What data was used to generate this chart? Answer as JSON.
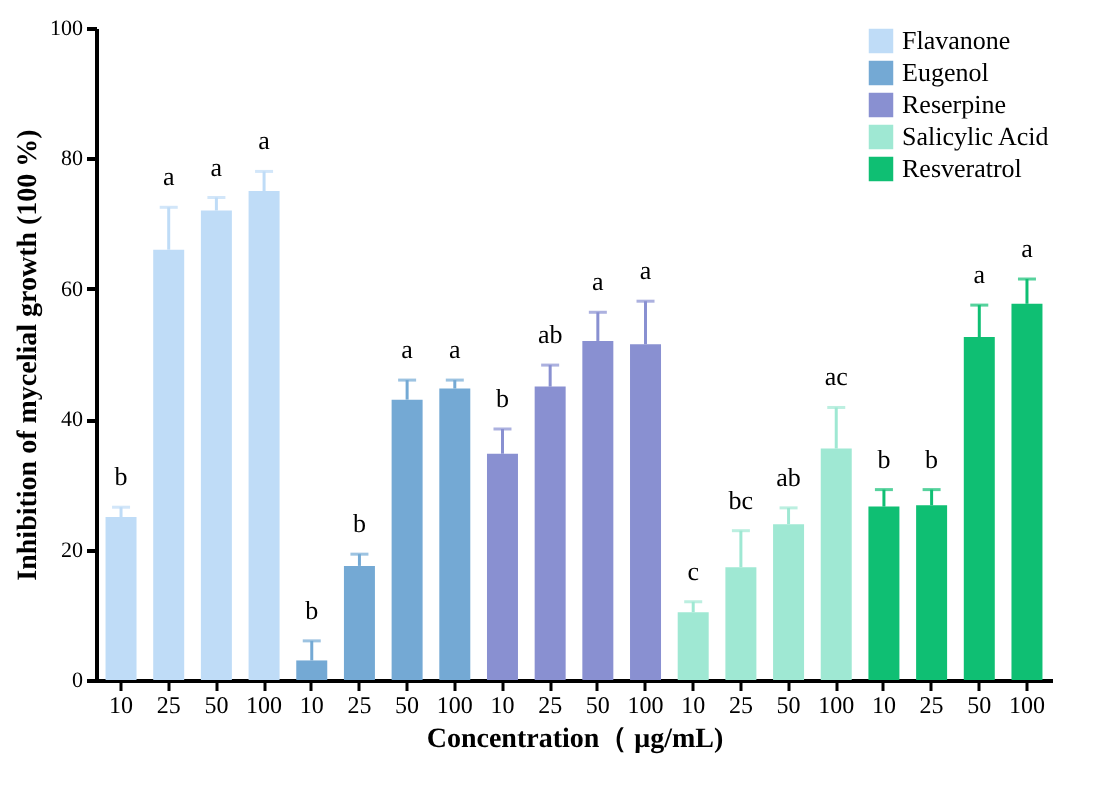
{
  "chart_data": {
    "type": "bar",
    "xlabel": "Concentration（ μg/mL)",
    "ylabel": "Inhibition of mycelial growth (100 %)",
    "categories": [
      "10",
      "25",
      "50",
      "100",
      "10",
      "25",
      "50",
      "100",
      "10",
      "25",
      "50",
      "100",
      "10",
      "25",
      "50",
      "100",
      "10",
      "25",
      "50",
      "100"
    ],
    "ylim": [
      0,
      100
    ],
    "yticks": [
      0,
      20,
      40,
      60,
      80,
      100
    ],
    "grid": false,
    "legend": "top right",
    "series": [
      {
        "name": "Flavanone",
        "color": "#bfdcf7",
        "values": [
          25,
          66,
          72,
          75,
          null,
          null,
          null,
          null,
          null,
          null,
          null,
          null,
          null,
          null,
          null,
          null,
          null,
          null,
          null,
          null
        ],
        "errors": [
          [
            25,
            26.5
          ],
          [
            66,
            72.5
          ],
          [
            72,
            74
          ],
          [
            75,
            78
          ],
          null,
          null,
          null,
          null,
          null,
          null,
          null,
          null,
          null,
          null,
          null,
          null,
          null,
          null,
          null,
          null
        ],
        "value_labels": [
          "b",
          "a",
          "a",
          "a",
          null,
          null,
          null,
          null,
          null,
          null,
          null,
          null,
          null,
          null,
          null,
          null,
          null,
          null,
          null,
          null
        ]
      },
      {
        "name": "Eugenol",
        "color": "#74a9d4",
        "values": [
          null,
          null,
          null,
          null,
          3,
          17.5,
          43,
          44.7,
          null,
          null,
          null,
          null,
          null,
          null,
          null,
          null,
          null,
          null,
          null,
          null
        ],
        "errors": [
          null,
          null,
          null,
          null,
          [
            3,
            6
          ],
          [
            17.5,
            19.3
          ],
          [
            43,
            46
          ],
          [
            44.7,
            46
          ],
          null,
          null,
          null,
          null,
          null,
          null,
          null,
          null,
          null,
          null,
          null,
          null
        ],
        "value_labels": [
          null,
          null,
          null,
          null,
          "b",
          "b",
          "a",
          "a",
          null,
          null,
          null,
          null,
          null,
          null,
          null,
          null,
          null,
          null,
          null,
          null
        ]
      },
      {
        "name": "Reserpine",
        "color": "#8990d1",
        "values": [
          null,
          null,
          null,
          null,
          null,
          null,
          null,
          null,
          34.7,
          45,
          52,
          51.5,
          null,
          null,
          null,
          null,
          null,
          null,
          null,
          null
        ],
        "errors": [
          null,
          null,
          null,
          null,
          null,
          null,
          null,
          null,
          [
            34.7,
            38.5
          ],
          [
            45,
            48.3
          ],
          [
            52,
            56.4
          ],
          [
            51.5,
            58.1
          ],
          null,
          null,
          null,
          null,
          null,
          null,
          null,
          null
        ],
        "value_labels": [
          null,
          null,
          null,
          null,
          null,
          null,
          null,
          null,
          "b",
          "ab",
          "a",
          "a",
          null,
          null,
          null,
          null,
          null,
          null,
          null,
          null
        ]
      },
      {
        "name": "Salicylic Acid",
        "color": "#9fe8d3",
        "values": [
          null,
          null,
          null,
          null,
          null,
          null,
          null,
          null,
          null,
          null,
          null,
          null,
          10.4,
          17.3,
          23.9,
          35.5,
          null,
          null,
          null,
          null
        ],
        "errors": [
          null,
          null,
          null,
          null,
          null,
          null,
          null,
          null,
          null,
          null,
          null,
          null,
          [
            10.4,
            12
          ],
          [
            17.3,
            22.9
          ],
          [
            23.9,
            26.4
          ],
          [
            35.5,
            41.8
          ],
          null,
          null,
          null,
          null
        ],
        "value_labels": [
          null,
          null,
          null,
          null,
          null,
          null,
          null,
          null,
          null,
          null,
          null,
          null,
          "c",
          "bc",
          "ab",
          "ac",
          null,
          null,
          null,
          null
        ]
      },
      {
        "name": "Resveratrol",
        "color": "#0fbf73",
        "values": [
          null,
          null,
          null,
          null,
          null,
          null,
          null,
          null,
          null,
          null,
          null,
          null,
          null,
          null,
          null,
          null,
          26.6,
          26.8,
          52.6,
          57.7
        ],
        "errors": [
          null,
          null,
          null,
          null,
          null,
          null,
          null,
          null,
          null,
          null,
          null,
          null,
          null,
          null,
          null,
          null,
          [
            26.6,
            29.2
          ],
          [
            26.8,
            29.2
          ],
          [
            52.6,
            57.5
          ],
          [
            57.7,
            61.5
          ]
        ],
        "value_labels": [
          null,
          null,
          null,
          null,
          null,
          null,
          null,
          null,
          null,
          null,
          null,
          null,
          null,
          null,
          null,
          null,
          "b",
          "b",
          "a",
          "a"
        ]
      }
    ]
  }
}
